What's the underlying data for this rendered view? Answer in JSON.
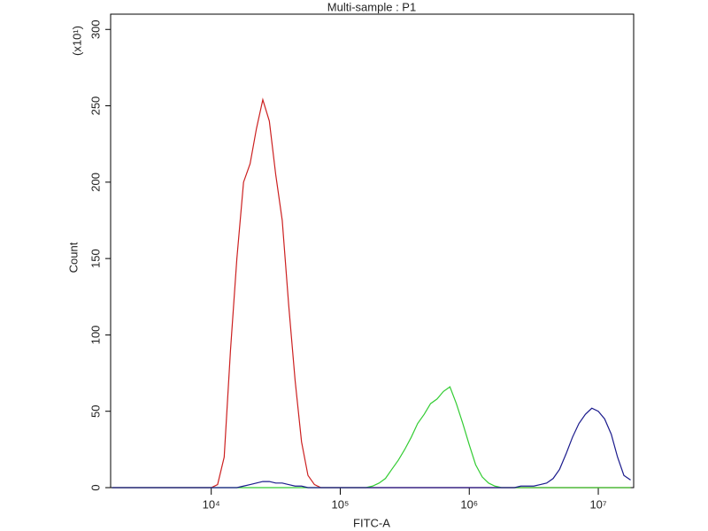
{
  "chart_data": {
    "type": "line",
    "title": "Multi-sample : P1",
    "x_label": "FITC-A",
    "y_label": "Count",
    "y_multiplier": "(x10¹)",
    "xscale": "log",
    "grid": false,
    "xlim": [
      1660,
      18800000
    ],
    "ylim": [
      0,
      310
    ],
    "xticks": [
      {
        "value": 10000,
        "label": "10⁴"
      },
      {
        "value": 100000,
        "label": "10⁵"
      },
      {
        "value": 1000000,
        "label": "10⁶"
      },
      {
        "value": 10000000,
        "label": "10⁷"
      }
    ],
    "yticks": [
      0,
      50,
      100,
      150,
      200,
      250,
      300
    ],
    "x": [
      1700,
      7940,
      8910,
      10000,
      11200,
      12600,
      14100,
      15800,
      17800,
      20000,
      22400,
      25100,
      28200,
      31600,
      35500,
      39800,
      44700,
      50100,
      56200,
      63100,
      70800,
      79400,
      89100,
      100000,
      112000,
      126000,
      141000,
      158000,
      178000,
      200000,
      224000,
      251000,
      282000,
      316000,
      355000,
      398000,
      447000,
      501000,
      562000,
      631000,
      708000,
      794000,
      891000,
      1000000,
      1120000,
      1260000,
      1410000,
      1580000,
      1780000,
      2000000,
      2240000,
      2510000,
      2820000,
      3160000,
      3550000,
      3980000,
      4470000,
      5010000,
      5620000,
      6310000,
      7080000,
      7940000,
      8910000,
      10000000,
      11200000,
      12600000,
      14100000,
      15800000,
      17800000
    ],
    "series": [
      {
        "color": "#cc2020",
        "values": [
          0,
          0,
          0,
          0,
          2,
          20,
          90,
          150,
          200,
          212,
          235,
          254,
          240,
          205,
          175,
          120,
          70,
          30,
          8,
          2,
          0,
          0,
          0,
          0,
          0,
          0,
          0,
          0,
          0,
          0,
          0,
          0,
          0,
          0,
          0,
          0,
          0,
          0,
          0,
          0,
          0,
          0,
          0,
          0,
          0,
          0,
          0,
          0,
          0,
          0,
          0,
          0,
          0,
          0,
          0,
          0,
          0,
          0,
          0,
          0,
          0,
          0,
          0,
          0,
          0,
          0,
          0,
          0,
          0
        ]
      },
      {
        "color": "#33cc33",
        "values": [
          0,
          0,
          0,
          0,
          0,
          0,
          0,
          0,
          0,
          0,
          0,
          0,
          0,
          0,
          0,
          0,
          0,
          0,
          0,
          0,
          0,
          0,
          0,
          0,
          0,
          0,
          0,
          0,
          1,
          3,
          6,
          12,
          18,
          25,
          33,
          42,
          48,
          55,
          58,
          63,
          66,
          55,
          42,
          28,
          15,
          7,
          3,
          1,
          0,
          0,
          0,
          0,
          0,
          0,
          0,
          0,
          0,
          0,
          0,
          0,
          0,
          0,
          0,
          0,
          0,
          0,
          0,
          0,
          0
        ]
      },
      {
        "color": "#1a1a8c",
        "values": [
          0,
          0,
          0,
          0,
          0,
          0,
          0,
          0,
          1,
          2,
          3,
          4,
          4,
          3,
          3,
          2,
          1,
          1,
          0,
          0,
          0,
          0,
          0,
          0,
          0,
          0,
          0,
          0,
          0,
          0,
          0,
          0,
          0,
          0,
          0,
          0,
          0,
          0,
          0,
          0,
          0,
          0,
          0,
          0,
          0,
          0,
          0,
          0,
          0,
          0,
          0,
          1,
          1,
          1,
          2,
          3,
          6,
          12,
          22,
          33,
          42,
          48,
          52,
          50,
          45,
          35,
          20,
          8,
          5
        ]
      }
    ]
  }
}
